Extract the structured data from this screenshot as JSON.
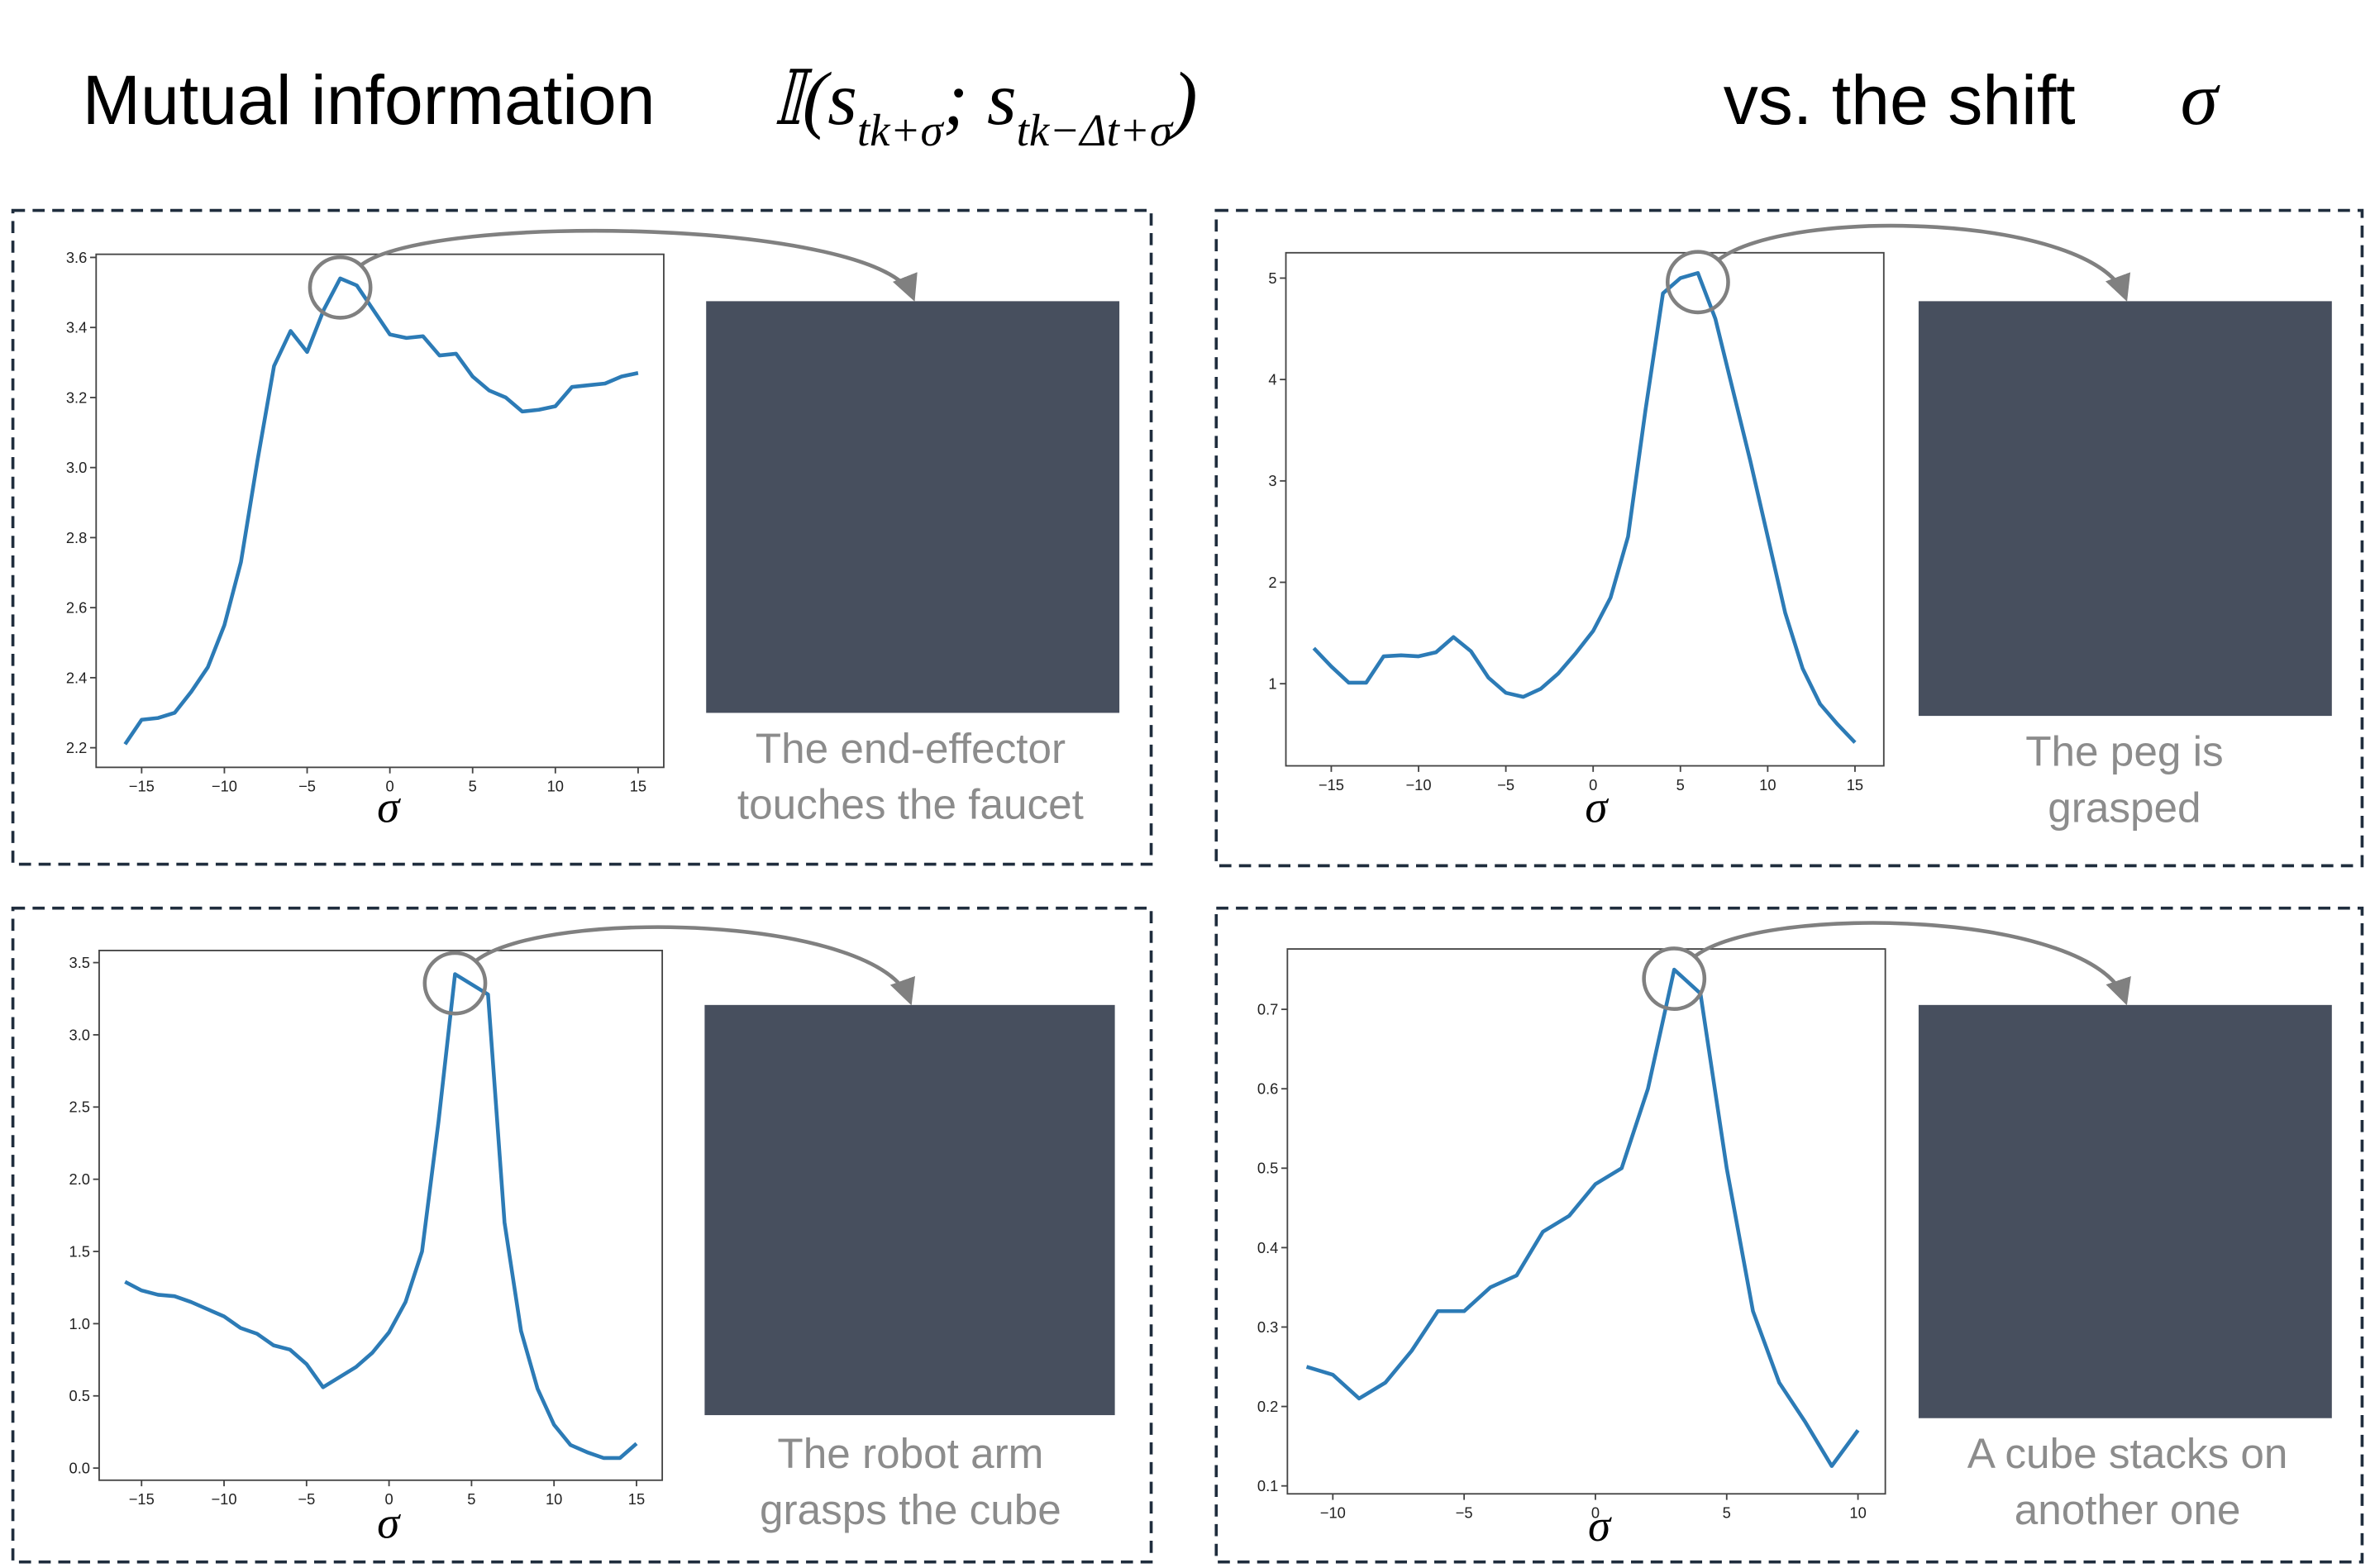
{
  "title": {
    "lead": "Mutual information",
    "formula": [
      "𝕀(s",
      "tk+σ",
      "; s",
      "tk−Δt+σ",
      ")"
    ],
    "tail": "vs. the shift",
    "symbol": "σ"
  },
  "chart_data": [
    {
      "type": "line",
      "xlabel": "σ",
      "caption": [
        "The end-effector",
        "touches the faucet"
      ],
      "color": "#2c7bb6",
      "x": [
        -16,
        -15,
        -14,
        -13,
        -12,
        -11,
        -10,
        -9,
        -8,
        -7,
        -6,
        -5,
        -4,
        -3,
        -2,
        -1,
        0,
        1,
        2,
        3,
        4,
        5,
        6,
        7,
        8,
        9,
        10,
        11,
        12,
        13,
        14,
        15
      ],
      "values": [
        2.21,
        2.28,
        2.285,
        2.3,
        2.36,
        2.43,
        2.55,
        2.73,
        3.02,
        3.29,
        3.39,
        3.33,
        3.45,
        3.54,
        3.52,
        3.45,
        3.38,
        3.37,
        3.375,
        3.32,
        3.325,
        3.26,
        3.22,
        3.2,
        3.16,
        3.165,
        3.175,
        3.23,
        3.235,
        3.24,
        3.26,
        3.27
      ],
      "xlim": [
        -17.75,
        16.55
      ],
      "ylim": [
        2.144,
        3.609
      ],
      "xticks": [
        {
          "value": -15,
          "label": "−15"
        },
        {
          "value": -10,
          "label": "−10"
        },
        {
          "value": -5,
          "label": "−5"
        },
        0,
        5,
        10,
        15
      ],
      "yticks": [
        2.2,
        2.4,
        2.6,
        2.8,
        {
          "value": 3,
          "label": "3.0"
        },
        3.2,
        3.4,
        3.6
      ]
    },
    {
      "type": "line",
      "xlabel": "σ",
      "caption": [
        "The peg is",
        "grasped"
      ],
      "color": "#2c7bb6",
      "x": [
        -16,
        -15,
        -14,
        -13,
        -12,
        -11,
        -10,
        -9,
        -8,
        -7,
        -6,
        -5,
        -4,
        -3,
        -2,
        -1,
        0,
        1,
        2,
        3,
        4,
        5,
        6,
        7,
        8,
        9,
        10,
        11,
        12,
        13,
        14,
        15
      ],
      "values": [
        1.35,
        1.17,
        1.01,
        1.01,
        1.27,
        1.28,
        1.27,
        1.31,
        1.46,
        1.32,
        1.06,
        0.91,
        0.87,
        0.95,
        1.1,
        1.3,
        1.52,
        1.85,
        2.45,
        3.7,
        4.85,
        5.0,
        5.05,
        4.6,
        3.9,
        3.2,
        2.45,
        1.7,
        1.15,
        0.8,
        0.6,
        0.42
      ],
      "xlim": [
        -17.6,
        16.65
      ],
      "ylim": [
        0.19,
        5.25
      ],
      "xticks": [
        {
          "value": -15,
          "label": "−15"
        },
        {
          "value": -10,
          "label": "−10"
        },
        {
          "value": -5,
          "label": "−5"
        },
        0,
        5,
        10,
        15
      ],
      "yticks": [
        1,
        2,
        3,
        4,
        5
      ]
    },
    {
      "type": "line",
      "xlabel": "σ",
      "caption": [
        "The robot arm",
        "grasps the cube"
      ],
      "color": "#2c7bb6",
      "x": [
        -16,
        -15,
        -14,
        -13,
        -12,
        -11,
        -10,
        -9,
        -8,
        -7,
        -6,
        -5,
        -4,
        -3,
        -2,
        -1,
        0,
        1,
        2,
        3,
        4,
        5,
        6,
        7,
        8,
        9,
        10,
        11,
        12,
        13,
        14,
        15
      ],
      "values": [
        1.29,
        1.23,
        1.2,
        1.19,
        1.15,
        1.1,
        1.05,
        0.97,
        0.93,
        0.85,
        0.82,
        0.72,
        0.56,
        0.63,
        0.7,
        0.8,
        0.94,
        1.15,
        1.5,
        2.4,
        3.42,
        3.35,
        3.28,
        1.7,
        0.95,
        0.55,
        0.3,
        0.16,
        0.11,
        0.07,
        0.07,
        0.17
      ],
      "xlim": [
        -17.57,
        16.56
      ],
      "ylim": [
        -0.084,
        3.584
      ],
      "xticks": [
        {
          "value": -15,
          "label": "−15"
        },
        {
          "value": -10,
          "label": "−10"
        },
        {
          "value": -5,
          "label": "−5"
        },
        0,
        5,
        10,
        15
      ],
      "yticks": [
        {
          "value": 0,
          "label": "0.0"
        },
        0.5,
        {
          "value": 1,
          "label": "1.0"
        },
        1.5,
        {
          "value": 2,
          "label": "2.0"
        },
        2.5,
        {
          "value": 3,
          "label": "3.0"
        },
        3.5
      ]
    },
    {
      "type": "line",
      "xlabel": "σ",
      "caption": [
        "A cube stacks on",
        "another one"
      ],
      "color": "#2c7bb6",
      "x": [
        -11,
        -10,
        -9,
        -8,
        -7,
        -6,
        -5,
        -4,
        -3,
        -2,
        -1,
        0,
        1,
        2,
        3,
        4,
        5,
        6,
        7,
        8,
        9,
        10
      ],
      "values": [
        0.25,
        0.24,
        0.21,
        0.23,
        0.27,
        0.32,
        0.32,
        0.35,
        0.365,
        0.42,
        0.44,
        0.48,
        0.5,
        0.6,
        0.75,
        0.72,
        0.5,
        0.32,
        0.23,
        0.18,
        0.125,
        0.17
      ],
      "xlim": [
        -11.73,
        11.04
      ],
      "ylim": [
        0.09,
        0.776
      ],
      "xticks": [
        {
          "value": -10,
          "label": "−10"
        },
        {
          "value": -5,
          "label": "−5"
        },
        0,
        5,
        10
      ],
      "yticks": [
        0.1,
        0.2,
        0.3,
        0.4,
        0.5,
        0.6,
        0.7
      ]
    }
  ]
}
